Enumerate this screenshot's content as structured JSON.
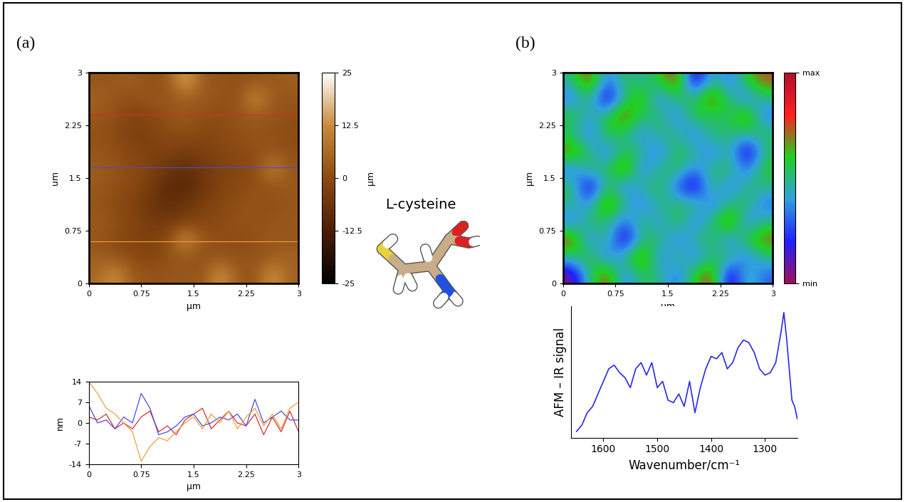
{
  "panels": {
    "a": "(a)",
    "b": "(b)"
  },
  "molecule": {
    "label": "L-cysteine"
  },
  "chart_data": [
    {
      "type": "heatmap",
      "xlabel": "µm",
      "ylabel": "um",
      "xlim": [
        0,
        3
      ],
      "ylim": [
        0,
        3
      ],
      "xticks": [
        0,
        0.75,
        1.5,
        2.25,
        3
      ],
      "yticks": [
        0,
        0.75,
        1.5,
        2.25,
        3
      ],
      "cells": [
        [
          2,
          3,
          4,
          1,
          2,
          18,
          3,
          2,
          1,
          2,
          3,
          4
        ],
        [
          5,
          2,
          1,
          3,
          2,
          4,
          3,
          2,
          1,
          14,
          3,
          2
        ],
        [
          3,
          1,
          -2,
          -1,
          2,
          3,
          1,
          0,
          2,
          3,
          2,
          1
        ],
        [
          1,
          0,
          -3,
          -2,
          0,
          1,
          -1,
          0,
          1,
          2,
          1,
          0
        ],
        [
          2,
          1,
          -1,
          -3,
          -2,
          -4,
          -3,
          -1,
          0,
          1,
          2,
          1
        ],
        [
          4,
          2,
          0,
          -2,
          -6,
          -8,
          -5,
          -3,
          -1,
          0,
          12,
          2
        ],
        [
          3,
          1,
          0,
          -4,
          -9,
          -10,
          -6,
          -2,
          0,
          1,
          2,
          3
        ],
        [
          2,
          0,
          -2,
          -6,
          -8,
          -6,
          -3,
          -1,
          1,
          2,
          1,
          2
        ],
        [
          3,
          1,
          -1,
          -4,
          -5,
          -3,
          -1,
          0,
          2,
          1,
          2,
          3
        ],
        [
          2,
          0,
          -2,
          -3,
          0,
          16,
          2,
          1,
          0,
          1,
          3,
          2
        ],
        [
          4,
          2,
          0,
          -1,
          1,
          2,
          1,
          2,
          1,
          2,
          3,
          5
        ],
        [
          6,
          14,
          3,
          2,
          2,
          3,
          2,
          15,
          3,
          2,
          15,
          4
        ]
      ],
      "colorbar": {
        "label": "µm",
        "range": [
          -25,
          25
        ],
        "ticks": [
          -25,
          -12.5,
          0,
          12.5,
          25
        ]
      },
      "profile_lines": [
        {
          "y": 2.4,
          "color": "#d03030"
        },
        {
          "y": 1.65,
          "color": "#4b4bd8"
        },
        {
          "y": 0.6,
          "color": "#f0a040"
        }
      ]
    },
    {
      "type": "line",
      "xlabel": "µm",
      "ylabel": "nm",
      "xlim": [
        0,
        3
      ],
      "ylim": [
        -14,
        14
      ],
      "xticks": [
        0,
        0.75,
        1.5,
        2.25,
        3
      ],
      "yticks": [
        -14,
        -7,
        0,
        7,
        14
      ],
      "x": [
        0,
        0.125,
        0.25,
        0.375,
        0.5,
        0.625,
        0.75,
        0.875,
        1.0,
        1.125,
        1.25,
        1.375,
        1.5,
        1.625,
        1.75,
        1.875,
        2.0,
        2.125,
        2.25,
        2.375,
        2.5,
        2.625,
        2.75,
        2.875,
        3.0
      ],
      "series": [
        {
          "color": "#d03030",
          "values": [
            2,
            1,
            3,
            -2,
            0,
            -2,
            2,
            4,
            -3,
            -1,
            -4,
            1,
            3,
            5,
            -2,
            1,
            4,
            0,
            -1,
            3,
            -4,
            2,
            -3,
            4,
            -3
          ]
        },
        {
          "color": "#4b4bd8",
          "values": [
            6,
            0,
            1,
            -2,
            2,
            0,
            10,
            5,
            -4,
            -3,
            -1,
            2,
            3,
            -1,
            0,
            2,
            1,
            3,
            -1,
            8,
            0,
            2,
            4,
            1,
            1
          ]
        },
        {
          "color": "#f0a040",
          "values": [
            14,
            10,
            5,
            3,
            0,
            -3,
            -13,
            -8,
            -5,
            -6,
            -3,
            0,
            2,
            -2,
            3,
            0,
            4,
            -2,
            2,
            5,
            -1,
            3,
            -2,
            5,
            7
          ]
        }
      ]
    },
    {
      "type": "heatmap",
      "xlabel": "µm",
      "ylabel": "µm",
      "xlim": [
        0,
        3
      ],
      "ylim": [
        0,
        3
      ],
      "xticks": [
        0,
        0.75,
        1.5,
        2.25,
        3
      ],
      "yticks": [
        0,
        0.75,
        1.5,
        2.25,
        3
      ],
      "cells": [
        [
          0.5,
          0.8,
          0.3,
          0.55,
          0.45,
          0.6,
          0.8,
          0.05,
          0.5,
          0.3,
          0.6,
          0.75
        ],
        [
          0.3,
          0.55,
          0.05,
          0.5,
          0.7,
          0.3,
          0.55,
          0.5,
          0.8,
          0.5,
          0.3,
          0.5
        ],
        [
          0.6,
          0.4,
          0.55,
          0.8,
          0.5,
          0.55,
          0.3,
          0.6,
          0.5,
          0.55,
          0.75,
          0.3
        ],
        [
          0.5,
          0.3,
          0.6,
          0.5,
          0.35,
          0.5,
          0.5,
          0.3,
          0.55,
          0.5,
          0.5,
          0.55
        ],
        [
          0.75,
          0.5,
          0.3,
          0.55,
          0.5,
          0.3,
          0.55,
          0.5,
          0.3,
          0.5,
          0.05,
          0.5
        ],
        [
          0.3,
          0.55,
          0.5,
          0.8,
          0.3,
          0.5,
          0.55,
          0.35,
          0.5,
          0.55,
          0.3,
          0.6
        ],
        [
          0.55,
          0.05,
          0.55,
          0.3,
          0.5,
          0.55,
          0.3,
          0.05,
          0.55,
          0.3,
          0.5,
          0.5
        ],
        [
          0.5,
          0.35,
          0.8,
          0.5,
          0.3,
          0.5,
          0.5,
          0.55,
          0.3,
          0.5,
          0.55,
          0.3
        ],
        [
          0.3,
          0.55,
          0.5,
          0.3,
          0.55,
          0.35,
          0.6,
          0.3,
          0.5,
          0.8,
          0.3,
          0.5
        ],
        [
          0.8,
          0.3,
          0.55,
          0.05,
          0.5,
          0.55,
          0.3,
          0.5,
          0.55,
          0.3,
          0.6,
          0.75
        ],
        [
          0.5,
          0.6,
          0.3,
          0.5,
          0.8,
          0.3,
          0.55,
          0.3,
          0.5,
          0.55,
          0.3,
          0.5
        ],
        [
          0.05,
          0.5,
          0.8,
          0.3,
          0.55,
          0.5,
          0.3,
          0.6,
          0.8,
          0.05,
          0.5,
          0.3
        ]
      ],
      "colorbar": {
        "range": [
          0,
          1
        ],
        "ticks": [
          {
            "value": 0,
            "label": "min"
          },
          {
            "value": 1,
            "label": "max"
          }
        ]
      }
    },
    {
      "type": "line",
      "xlabel": "Wavenumber/cm⁻¹",
      "ylabel": "AFM – IR signal",
      "xlim": [
        1660,
        1240
      ],
      "ylim": [
        0,
        1.05
      ],
      "xticks": [
        1600,
        1500,
        1400,
        1300
      ],
      "tick_labels": "x",
      "x": [
        1650,
        1640,
        1630,
        1620,
        1610,
        1600,
        1590,
        1580,
        1570,
        1560,
        1550,
        1540,
        1530,
        1520,
        1510,
        1500,
        1490,
        1480,
        1470,
        1460,
        1450,
        1440,
        1430,
        1420,
        1410,
        1400,
        1390,
        1380,
        1370,
        1360,
        1350,
        1340,
        1330,
        1320,
        1310,
        1300,
        1290,
        1280,
        1270,
        1265,
        1260,
        1250,
        1245,
        1240
      ],
      "series": [
        {
          "color": "#2a2ae0",
          "values": [
            0.05,
            0.1,
            0.2,
            0.25,
            0.35,
            0.45,
            0.55,
            0.58,
            0.52,
            0.48,
            0.4,
            0.55,
            0.6,
            0.5,
            0.6,
            0.4,
            0.45,
            0.3,
            0.28,
            0.35,
            0.25,
            0.45,
            0.2,
            0.4,
            0.55,
            0.65,
            0.63,
            0.68,
            0.55,
            0.6,
            0.72,
            0.78,
            0.76,
            0.68,
            0.55,
            0.5,
            0.52,
            0.6,
            0.85,
            1.0,
            0.8,
            0.3,
            0.25,
            0.15
          ]
        }
      ]
    }
  ]
}
